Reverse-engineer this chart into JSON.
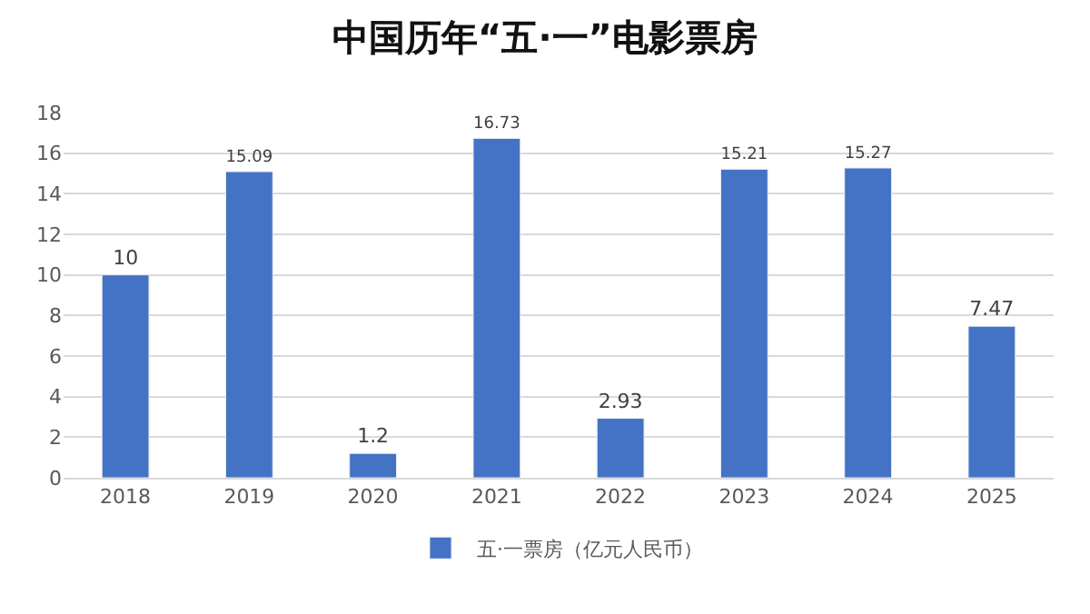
{
  "chart_data": {
    "type": "bar",
    "title": "中国历年“五·一”电影票房",
    "categories": [
      "2018",
      "2019",
      "2020",
      "2021",
      "2022",
      "2023",
      "2024",
      "2025"
    ],
    "series": [
      {
        "name": "五·一票房（亿元人民币）",
        "color": "#4472c4",
        "values": [
          10,
          15.09,
          1.2,
          16.73,
          2.93,
          15.21,
          15.27,
          7.47
        ]
      }
    ],
    "ylim": [
      0,
      18
    ],
    "yticks": [
      0,
      2,
      4,
      6,
      8,
      10,
      12,
      14,
      16,
      18
    ],
    "grid": "y",
    "legend": "bottom",
    "data_labels": true
  }
}
